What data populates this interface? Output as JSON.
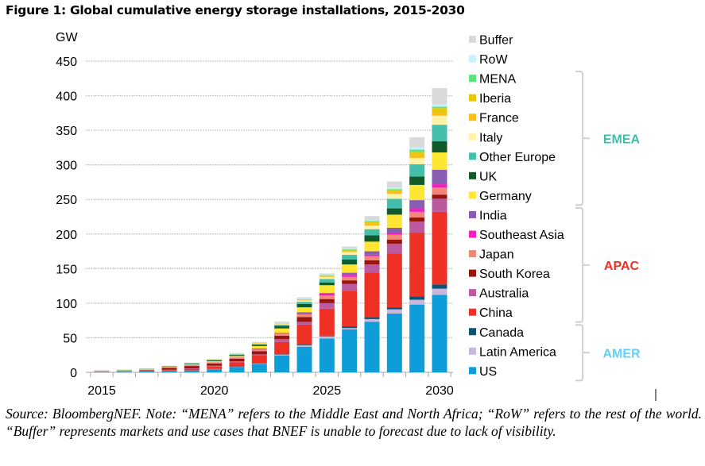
{
  "chart_data": {
    "type": "bar",
    "stacked": true,
    "title": "Figure 1: Global cumulative energy storage installations, 2015-2030",
    "ylabel": "GW",
    "xlabel": "",
    "ylim": [
      0,
      450
    ],
    "yticks": [
      0,
      50,
      100,
      150,
      200,
      250,
      300,
      350,
      400,
      450
    ],
    "xtick_labels": [
      "2015",
      "2020",
      "2025",
      "2030"
    ],
    "grid": "horizontal",
    "legend_position": "right",
    "categories": [
      "2015",
      "2016",
      "2017",
      "2018",
      "2019",
      "2020",
      "2021",
      "2022",
      "2023",
      "2024",
      "2025",
      "2026",
      "2027",
      "2028",
      "2029",
      "2030"
    ],
    "series": [
      {
        "name": "US",
        "color": "#0e9dd9",
        "values": [
          0.4,
          0.8,
          1,
          1.5,
          2.5,
          4.5,
          7.5,
          12,
          24.5,
          37,
          49,
          62,
          73,
          85,
          98,
          112
        ]
      },
      {
        "name": "Latin America",
        "color": "#c5b8dc",
        "values": [
          0.03,
          0.05,
          0.05,
          0.1,
          0.1,
          0.2,
          0.3,
          0.6,
          1,
          2,
          3,
          2,
          4,
          6,
          7,
          9
        ]
      },
      {
        "name": "Canada",
        "color": "#0b5275",
        "values": [
          0.03,
          0.05,
          0.1,
          0.1,
          0.2,
          0.2,
          0.2,
          0.4,
          0.5,
          1,
          1,
          2,
          3,
          3,
          5,
          6
        ]
      },
      {
        "name": "China",
        "color": "#ef3024",
        "values": [
          0.2,
          0.4,
          0.7,
          1.5,
          2.2,
          3.5,
          6.5,
          12,
          18,
          29,
          39,
          52,
          64,
          78,
          92,
          105
        ]
      },
      {
        "name": "Australia",
        "color": "#bc5aa0",
        "values": [
          0.1,
          0.2,
          0.3,
          0.5,
          0.8,
          1.2,
          1.5,
          1,
          4,
          4,
          8,
          10,
          12,
          14,
          16,
          19
        ]
      },
      {
        "name": "South Korea",
        "color": "#96150f",
        "values": [
          0.1,
          0.3,
          0.9,
          2.8,
          3.3,
          3.3,
          3.5,
          4.5,
          5,
          7,
          6,
          5,
          6,
          6,
          6,
          6
        ]
      },
      {
        "name": "Japan",
        "color": "#f28678",
        "values": [
          0.3,
          0.4,
          0.6,
          0.8,
          1,
          1.2,
          1.5,
          2.5,
          3.5,
          4,
          5,
          5,
          6,
          7,
          8,
          10
        ]
      },
      {
        "name": "Southeast Asia",
        "color": "#f01fbd",
        "values": [
          0.02,
          0.03,
          0.05,
          0.1,
          0.1,
          0.2,
          0.3,
          1,
          0.5,
          1,
          3,
          3,
          2,
          3,
          5,
          5
        ]
      },
      {
        "name": "India",
        "color": "#8a5db5",
        "values": [
          0.02,
          0.03,
          0.05,
          0.1,
          0.1,
          0.2,
          0.3,
          0.5,
          0.5,
          2,
          1,
          3,
          5,
          7,
          12,
          21
        ]
      },
      {
        "name": "Germany",
        "color": "#ffe633",
        "values": [
          0.3,
          0.5,
          0.7,
          0.9,
          1.2,
          1.5,
          2,
          3.5,
          6,
          7,
          11,
          12,
          14,
          19,
          22,
          25
        ]
      },
      {
        "name": "UK",
        "color": "#0f5a2a",
        "values": [
          0.2,
          0.3,
          0.4,
          0.5,
          1,
          1.2,
          1.5,
          2,
          3.5,
          5,
          4,
          7,
          9,
          9,
          12,
          16
        ]
      },
      {
        "name": "Other Europe",
        "color": "#43bfab",
        "values": [
          0.4,
          0.3,
          0.3,
          0.3,
          0.5,
          0.8,
          1,
          1,
          2,
          3,
          5,
          7,
          9,
          14,
          18,
          24
        ]
      },
      {
        "name": "Italy",
        "color": "#fff3a8",
        "values": [
          0.05,
          0.1,
          0.1,
          0.1,
          0.2,
          0.4,
          0.5,
          1,
          1.5,
          2,
          3,
          4,
          5,
          7,
          9,
          13
        ]
      },
      {
        "name": "France",
        "color": "#fbbd1a",
        "values": [
          0.05,
          0.05,
          0.1,
          0.1,
          0.2,
          0.3,
          0.3,
          0.5,
          0.5,
          1,
          1,
          2,
          3,
          3,
          5,
          4
        ]
      },
      {
        "name": "Iberia",
        "color": "#e8c700",
        "values": [
          0.05,
          0.05,
          0.05,
          0.05,
          0.1,
          0.2,
          0.2,
          0.3,
          0.3,
          0.5,
          1,
          1,
          3,
          3,
          4,
          7
        ]
      },
      {
        "name": "MENA",
        "color": "#5be37f",
        "values": [
          0.03,
          0.03,
          0.05,
          0.05,
          0.05,
          0.1,
          0.1,
          0.2,
          0.2,
          0.3,
          0.5,
          1,
          1,
          1,
          3,
          2
        ]
      },
      {
        "name": "RoW",
        "color": "#c8effd",
        "values": [
          0.1,
          0.05,
          0.05,
          0.05,
          0.05,
          0.1,
          0.2,
          0.3,
          0.3,
          0.7,
          0.5,
          1,
          1,
          2,
          3,
          4
        ]
      },
      {
        "name": "Buffer",
        "color": "#d9d9d9",
        "values": [
          1,
          0.6,
          0.4,
          0.2,
          0.4,
          0.4,
          0.6,
          0.7,
          1.5,
          2,
          2,
          3,
          6,
          9,
          15,
          23
        ]
      }
    ],
    "groups": [
      {
        "name": "EMEA",
        "color": "#3dbfa6",
        "members": [
          "MENA",
          "Iberia",
          "France",
          "Italy",
          "Other Europe",
          "UK",
          "Germany"
        ]
      },
      {
        "name": "APAC",
        "color": "#ef3024",
        "members": [
          "India",
          "Southeast Asia",
          "Japan",
          "South Korea",
          "Australia",
          "China"
        ]
      },
      {
        "name": "AMER",
        "color": "#5fd3f5",
        "members": [
          "Canada",
          "Latin America",
          "US"
        ]
      }
    ]
  },
  "note": "Source: BloombergNEF. Note: “MENA” refers to the Middle East and North Africa; “RoW” refers to the rest of the world. “Buffer” represents markets and use cases that BNEF is unable to forecast due to lack of visibility."
}
